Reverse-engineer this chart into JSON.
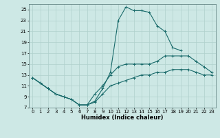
{
  "xlabel": "Humidex (Indice chaleur)",
  "background_color": "#cde8e5",
  "grid_color": "#afd0cc",
  "line_color": "#1a6b6b",
  "xlim": [
    -0.5,
    23.5
  ],
  "ylim": [
    7,
    26
  ],
  "xticks": [
    0,
    1,
    2,
    3,
    4,
    5,
    6,
    7,
    8,
    9,
    10,
    11,
    12,
    13,
    14,
    15,
    16,
    17,
    18,
    19,
    20,
    21,
    22,
    23
  ],
  "yticks": [
    7,
    9,
    11,
    13,
    15,
    17,
    19,
    21,
    23,
    25
  ],
  "line1_x": [
    0,
    1,
    2,
    3,
    4,
    5,
    6,
    7,
    8,
    9,
    10,
    11,
    12,
    13,
    14,
    15,
    16,
    17,
    18,
    19,
    20,
    21,
    22,
    23
  ],
  "line1_y": [
    12.5,
    11.5,
    10.5,
    9.5,
    9.0,
    8.5,
    7.5,
    7.5,
    8.2,
    10.5,
    13.5,
    23.0,
    25.5,
    24.8,
    24.8,
    24.5,
    22.0,
    21.0,
    18.0,
    17.5,
    null,
    null,
    null,
    null
  ],
  "line2_x": [
    0,
    1,
    2,
    3,
    4,
    5,
    6,
    7,
    8,
    9,
    10,
    11,
    12,
    13,
    14,
    15,
    16,
    17,
    18,
    19,
    20,
    21,
    22,
    23
  ],
  "line2_y": [
    12.5,
    11.5,
    10.5,
    9.5,
    9.0,
    8.5,
    7.5,
    7.5,
    9.5,
    11.0,
    13.0,
    14.5,
    15.0,
    15.0,
    15.0,
    15.0,
    15.5,
    16.5,
    16.5,
    16.5,
    16.5,
    15.5,
    14.5,
    13.5
  ],
  "line3_x": [
    0,
    1,
    2,
    3,
    4,
    5,
    6,
    7,
    8,
    9,
    10,
    11,
    12,
    13,
    14,
    15,
    16,
    17,
    18,
    19,
    20,
    21,
    22,
    23
  ],
  "line3_y": [
    12.5,
    11.5,
    10.5,
    9.5,
    9.0,
    8.5,
    7.5,
    7.5,
    8.0,
    9.5,
    11.0,
    11.5,
    12.0,
    12.5,
    13.0,
    13.0,
    13.5,
    13.5,
    14.0,
    14.0,
    14.0,
    13.5,
    13.0,
    13.0
  ]
}
